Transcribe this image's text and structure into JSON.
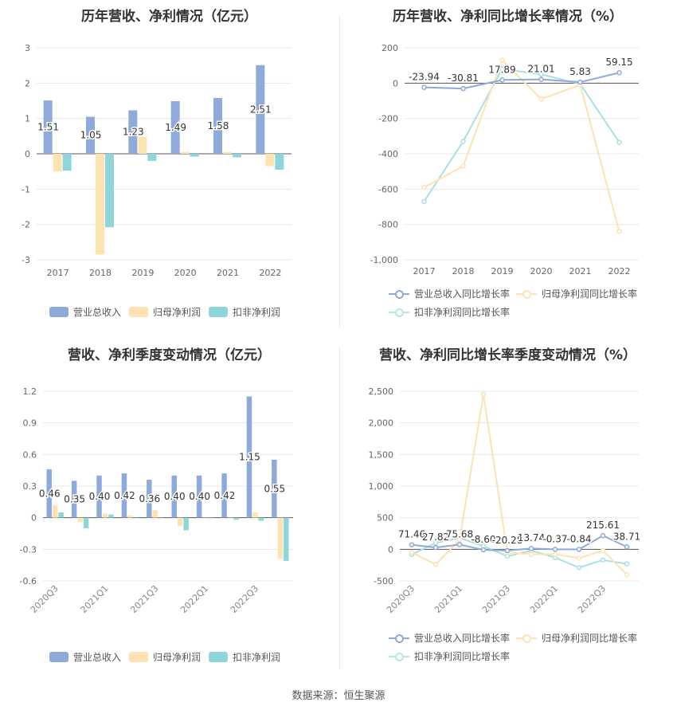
{
  "footer": "数据来源：恒生聚源",
  "colors": {
    "revenue": "#8eaadb",
    "parent": "#fde3b2",
    "deducted": "#8ed6d9"
  },
  "chart_data": [
    {
      "type": "bar",
      "title": "历年营收、净利情况（亿元）",
      "categories": [
        "2017",
        "2018",
        "2019",
        "2020",
        "2021",
        "2022"
      ],
      "ylim": [
        -3,
        3
      ],
      "yticks": [
        -3,
        -2,
        -1,
        0,
        1,
        2,
        3
      ],
      "series": [
        {
          "name": "营业总收入",
          "values": [
            1.51,
            1.05,
            1.23,
            1.49,
            1.58,
            2.51
          ]
        },
        {
          "name": "归母净利润",
          "values": [
            -0.5,
            -2.85,
            0.48,
            0.05,
            0.05,
            -0.35
          ]
        },
        {
          "name": "扣非净利润",
          "values": [
            -0.48,
            -2.08,
            -0.2,
            -0.08,
            -0.1,
            -0.45
          ]
        }
      ],
      "labels": [
        "1.51",
        "1.05",
        "1.23",
        "1.49",
        "1.58",
        "2.51"
      ],
      "legend_position": "bottom"
    },
    {
      "type": "line",
      "title": "历年营收、净利同比增长率情况（%）",
      "categories": [
        "2017",
        "2018",
        "2019",
        "2020",
        "2021",
        "2022"
      ],
      "ylim": [
        -1000,
        200
      ],
      "yticks": [
        -1000,
        -800,
        -600,
        -400,
        -200,
        0,
        200
      ],
      "ytick_labels": [
        "-1,000",
        "-800",
        "-600",
        "-400",
        "-200",
        "0",
        "200"
      ],
      "series": [
        {
          "name": "营业总收入同比增长率",
          "values": [
            -23.94,
            -30.81,
            17.89,
            21.01,
            5.83,
            59.15
          ]
        },
        {
          "name": "归母净利润同比增长率",
          "values": [
            -590,
            -470,
            130,
            -90,
            -10,
            -840
          ]
        },
        {
          "name": "扣非净利润同比增长率",
          "values": [
            -670,
            -330,
            80,
            50,
            -5,
            -335
          ]
        }
      ],
      "labels": [
        "-23.94",
        "-30.81",
        "17.89",
        "21.01",
        "5.83",
        "59.15"
      ],
      "legend_position": "bottom"
    },
    {
      "type": "bar",
      "title": "营收、净利季度变动情况（亿元）",
      "categories": [
        "2020Q3",
        "2020Q4",
        "2021Q1",
        "2021Q2",
        "2021Q3",
        "2021Q4",
        "2022Q1",
        "2022Q2",
        "2022Q3",
        "2022Q4"
      ],
      "tick_labels": [
        "2020Q3",
        "",
        "2021Q1",
        "",
        "2021Q3",
        "",
        "2022Q1",
        "",
        "2022Q3",
        ""
      ],
      "ylim": [
        -0.6,
        1.2
      ],
      "yticks": [
        -0.6,
        -0.3,
        0,
        0.3,
        0.6,
        0.9,
        1.2
      ],
      "series": [
        {
          "name": "营业总收入",
          "values": [
            0.46,
            0.35,
            0.4,
            0.42,
            0.36,
            0.4,
            0.4,
            0.42,
            1.15,
            0.55
          ]
        },
        {
          "name": "归母净利润",
          "values": [
            0.12,
            -0.04,
            0.04,
            0.02,
            0.07,
            -0.08,
            0.0,
            0.0,
            0.05,
            -0.39
          ]
        },
        {
          "name": "扣非净利润",
          "values": [
            0.05,
            -0.1,
            0.03,
            0.0,
            0.0,
            -0.12,
            0.0,
            -0.02,
            -0.03,
            -0.41
          ]
        }
      ],
      "labels": [
        "0.46",
        "0.35",
        "0.40",
        "0.42",
        "0.36",
        "0.40",
        "0.40",
        "0.42",
        "1.15",
        "0.55"
      ],
      "legend_position": "bottom"
    },
    {
      "type": "line",
      "title": "营收、净利同比增长率季度变动情况（%）",
      "categories": [
        "2020Q3",
        "2020Q4",
        "2021Q1",
        "2021Q2",
        "2021Q3",
        "2021Q4",
        "2022Q1",
        "2022Q2",
        "2022Q3",
        "2022Q4"
      ],
      "tick_labels": [
        "2020Q3",
        "",
        "2021Q1",
        "",
        "2021Q3",
        "",
        "2022Q1",
        "",
        "2022Q3",
        ""
      ],
      "ylim": [
        -500,
        2500
      ],
      "yticks": [
        -500,
        0,
        500,
        1000,
        1500,
        2000,
        2500
      ],
      "ytick_labels": [
        "-500",
        "0",
        "500",
        "1,000",
        "1,500",
        "2,000",
        "2,500"
      ],
      "series": [
        {
          "name": "营业总收入同比增长率",
          "values": [
            71.46,
            27.82,
            75.68,
            -8.6,
            -20.28,
            13.74,
            -0.37,
            -0.84,
            215.61,
            38.71
          ]
        },
        {
          "name": "归母净利润同比增长率",
          "values": [
            -50,
            -240,
            150,
            2450,
            -50,
            -80,
            -80,
            -140,
            -20,
            -400
          ]
        },
        {
          "name": "扣非净利润同比增长率",
          "values": [
            -80,
            100,
            180,
            50,
            -110,
            -20,
            -130,
            -290,
            -170,
            -230
          ]
        }
      ],
      "labels": [
        "71.46",
        "27.82",
        "75.68",
        "-8.60",
        "-20.28",
        "13.74",
        "-0.37",
        "-0.84",
        "215.61",
        "38.71"
      ],
      "legend_position": "bottom"
    }
  ]
}
